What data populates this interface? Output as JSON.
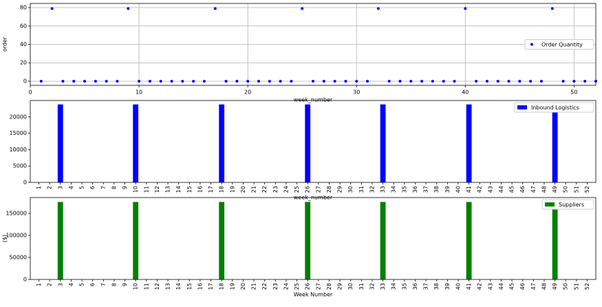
{
  "chart_data": [
    {
      "type": "scatter",
      "x_label": "week_number",
      "y_label": "order",
      "x": [
        1,
        2,
        3,
        4,
        5,
        6,
        7,
        8,
        9,
        10,
        11,
        12,
        13,
        14,
        15,
        16,
        17,
        18,
        19,
        20,
        21,
        22,
        23,
        24,
        25,
        26,
        27,
        28,
        29,
        30,
        31,
        32,
        33,
        34,
        35,
        36,
        37,
        38,
        39,
        40,
        41,
        42,
        43,
        44,
        45,
        46,
        47,
        48,
        49,
        50,
        51,
        52
      ],
      "series": [
        {
          "name": "Order Quantity",
          "color": "#0000ff",
          "values": [
            0,
            79,
            0,
            0,
            0,
            0,
            0,
            0,
            79,
            0,
            0,
            0,
            0,
            0,
            0,
            0,
            79,
            0,
            0,
            0,
            0,
            0,
            0,
            0,
            79,
            0,
            0,
            0,
            0,
            0,
            0,
            79,
            0,
            0,
            0,
            0,
            0,
            0,
            0,
            79,
            0,
            0,
            0,
            0,
            0,
            0,
            0,
            79,
            0,
            0,
            0,
            0
          ]
        }
      ],
      "xlim": [
        0,
        52
      ],
      "xticks": [
        0,
        10,
        20,
        30,
        40,
        50
      ],
      "ylim": [
        -4.5,
        84.5
      ],
      "yticks": [
        0,
        20,
        40,
        60,
        80
      ],
      "grid": true,
      "legend": "center right"
    },
    {
      "type": "bar",
      "x_label": "week_number",
      "categories": [
        "1",
        "2",
        "3",
        "4",
        "5",
        "6",
        "7",
        "8",
        "9",
        "10",
        "11",
        "12",
        "13",
        "14",
        "15",
        "16",
        "17",
        "18",
        "19",
        "20",
        "21",
        "22",
        "23",
        "24",
        "25",
        "26",
        "27",
        "28",
        "29",
        "30",
        "31",
        "32",
        "33",
        "34",
        "35",
        "36",
        "37",
        "38",
        "39",
        "40",
        "41",
        "42",
        "43",
        "44",
        "45",
        "46",
        "47",
        "48",
        "49",
        "50",
        "51",
        "52"
      ],
      "series": [
        {
          "name": "Inbound Logistics",
          "color": "#0000ff",
          "values": [
            0,
            0,
            23800,
            0,
            0,
            0,
            0,
            0,
            0,
            23800,
            0,
            0,
            0,
            0,
            0,
            0,
            0,
            23800,
            0,
            0,
            0,
            0,
            0,
            0,
            0,
            23800,
            0,
            0,
            0,
            0,
            0,
            0,
            23800,
            0,
            0,
            0,
            0,
            0,
            0,
            0,
            23800,
            0,
            0,
            0,
            0,
            0,
            0,
            0,
            23800,
            0,
            0,
            0
          ]
        }
      ],
      "ylim": [
        0,
        25000
      ],
      "yticks": [
        0,
        5000,
        10000,
        15000,
        20000
      ],
      "grid": false,
      "legend": "upper right"
    },
    {
      "type": "bar",
      "x_label": "Week Number",
      "y_label": "($)",
      "categories": [
        "1",
        "2",
        "3",
        "4",
        "5",
        "6",
        "7",
        "8",
        "9",
        "10",
        "11",
        "12",
        "13",
        "14",
        "15",
        "16",
        "17",
        "18",
        "19",
        "20",
        "21",
        "22",
        "23",
        "24",
        "25",
        "26",
        "27",
        "28",
        "29",
        "30",
        "31",
        "32",
        "33",
        "34",
        "35",
        "36",
        "37",
        "38",
        "39",
        "40",
        "41",
        "42",
        "43",
        "44",
        "45",
        "46",
        "47",
        "48",
        "49",
        "50",
        "51",
        "52"
      ],
      "series": [
        {
          "name": "Suppliers",
          "color": "#008000",
          "values": [
            0,
            0,
            176000,
            0,
            0,
            0,
            0,
            0,
            0,
            176000,
            0,
            0,
            0,
            0,
            0,
            0,
            0,
            176000,
            0,
            0,
            0,
            0,
            0,
            0,
            0,
            176000,
            0,
            0,
            0,
            0,
            0,
            0,
            176000,
            0,
            0,
            0,
            0,
            0,
            0,
            0,
            176000,
            0,
            0,
            0,
            0,
            0,
            0,
            0,
            176000,
            0,
            0,
            0
          ]
        }
      ],
      "ylim": [
        0,
        186000
      ],
      "yticks": [
        0,
        50000,
        100000,
        150000
      ],
      "grid": false,
      "legend": "upper right"
    }
  ]
}
